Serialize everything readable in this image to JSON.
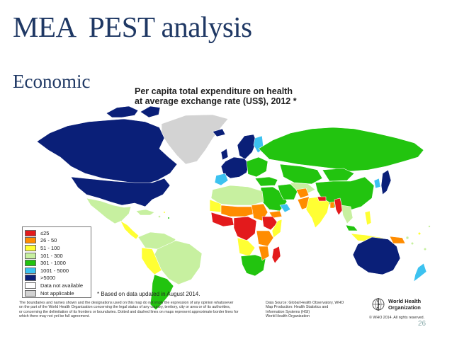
{
  "slide": {
    "title": "MEA  PEST analysis",
    "subtitle": "Economic",
    "page_number": "26"
  },
  "map": {
    "title_line1": "Per capita total expenditure on health",
    "title_line2": "at average exchange rate (US$), 2012 *",
    "based_note": "* Based on data updated in August 2014.",
    "disclaimer_lines": [
      "The boundaries and names shown and the designations used on this map do not imply the expression of any opinion whatsoever",
      "on the part of the World Health Organization concerning the legal status of any country, territory, city or area or of its authorities,",
      "or concerning the delimitation of its frontiers or boundaries. Dotted and dashed lines on maps represent approximate border lines for",
      "which there may not yet be full agreement."
    ],
    "source_lines": [
      "Data Source: Global Health Observatory, WHO",
      "Map Production: Health Statistics and",
      "Information Systems (HSI)",
      "World Health Organization"
    ],
    "who_name_line1": "World Health",
    "who_name_line2": "Organization",
    "who_copyright": "© WHO 2014. All rights reserved.",
    "legend": [
      {
        "label": "≤25",
        "color": "#e31a1c"
      },
      {
        "label": "26 - 50",
        "color": "#ff8c00"
      },
      {
        "label": "51 - 100",
        "color": "#ffff33"
      },
      {
        "label": "101 - 300",
        "color": "#c7f0a0"
      },
      {
        "label": "301 - 1000",
        "color": "#22c40f"
      },
      {
        "label": "1001 - 5000",
        "color": "#3cc2f0"
      },
      {
        "label": ">5000",
        "color": "#0a1f78"
      },
      {
        "label": "Data not available",
        "color": "#ffffff"
      },
      {
        "label": "Not applicable",
        "color": "#d3d3d3"
      }
    ]
  },
  "colors": {
    "title": "#1f3864",
    "le25": "#e31a1c",
    "c26_50": "#ff8c00",
    "c51_100": "#ffff33",
    "c101_300": "#c7f0a0",
    "c301_1000": "#22c40f",
    "c1001_5000": "#3cc2f0",
    "c_gt5000": "#0a1f78",
    "no_data": "#ffffff",
    "not_applicable": "#d3d3d3"
  }
}
